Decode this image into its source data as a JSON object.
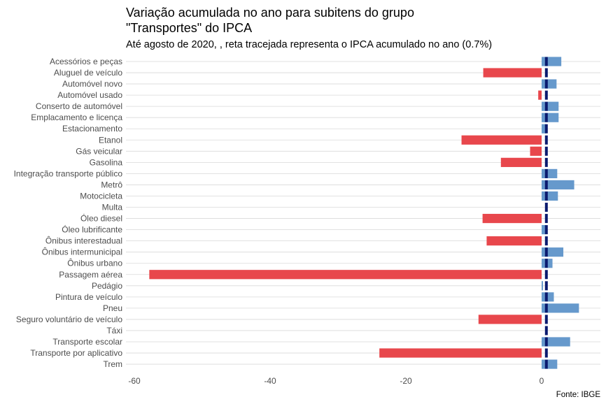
{
  "chart_data": {
    "type": "bar",
    "orientation": "horizontal",
    "title_lines": [
      "Variação acumulada no ano para subitens do grupo",
      "\"Transportes\" do IPCA"
    ],
    "subtitle": "Até agosto de 2020, , reta tracejada representa o IPCA acumulado no ano (0.7%)",
    "caption": "Fonte: IBGE",
    "xlabel": "",
    "ylabel": "",
    "xlim": [
      -61,
      11
    ],
    "x_ticks": [
      -60,
      -40,
      -20,
      0
    ],
    "reference_line": 0.7,
    "grid": true,
    "colors": {
      "positive": "#6699cc",
      "negative": "#e8474c",
      "reference": "#0a1a6e"
    },
    "categories": [
      "Acessórios e peças",
      "Aluguel de veículo",
      "Automóvel novo",
      "Automóvel usado",
      "Conserto de automóvel",
      "Emplacamento e licença",
      "Estacionamento",
      "Etanol",
      "Gás veicular",
      "Gasolina",
      "Integração transporte público",
      "Metrô",
      "Motocicleta",
      "Multa",
      "Óleo diesel",
      "Óleo lubrificante",
      "Ônibus interestadual",
      "Ônibus intermunicipal",
      "Ônibus urbano",
      "Passagem aérea",
      "Pedágio",
      "Pintura de veículo",
      "Pneu",
      "Seguro voluntário de veículo",
      "Táxi",
      "Transporte escolar",
      "Transporte por aplicativo",
      "Trem"
    ],
    "values": [
      2.9,
      -8.6,
      2.2,
      -0.5,
      2.5,
      2.5,
      0.7,
      -11.8,
      -1.7,
      -6.0,
      2.3,
      4.8,
      2.4,
      0.0,
      -8.7,
      0.6,
      -8.1,
      3.2,
      1.6,
      -57.8,
      0.2,
      1.8,
      5.5,
      -9.3,
      0.0,
      4.2,
      -23.9,
      2.3
    ]
  }
}
